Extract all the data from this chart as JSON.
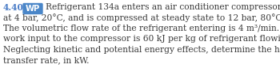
{
  "problem_number": "4.40",
  "wp_label": "WP",
  "wp_bg_color": "#4a86c8",
  "wp_text_color": "#ffffff",
  "number_color": "#4a7cc7",
  "body_color": "#3a3a3a",
  "background_color": "#ffffff",
  "lines": [
    "Refrigerant 134a enters an air conditioner compressor",
    "at 4 bar, 20°C, and is compressed at steady state to 12 bar, 80°C.",
    "The volumetric flow rate of the refrigerant entering is 4 m³/min. The",
    "work input to the compressor is 60 kJ per kg of refrigerant flowing.",
    "Neglecting kinetic and potential energy effects, determine the heat",
    "transfer rate, in kW."
  ],
  "font_size": 7.7,
  "figwidth": 3.5,
  "figheight": 0.91
}
